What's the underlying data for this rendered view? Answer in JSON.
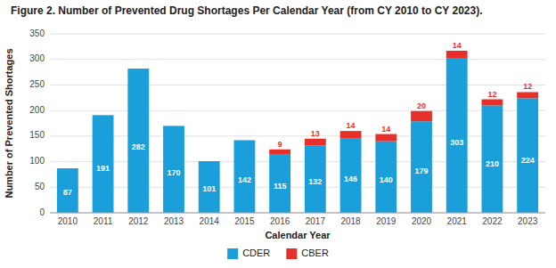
{
  "chart_data": {
    "type": "bar",
    "stacked": true,
    "title": "Figure 2.  Number of Prevented Drug Shortages Per Calendar Year (from CY 2010 to CY 2023).",
    "x_label": "Calendar Year",
    "y_label": "Number of Prevented Shortages",
    "categories": [
      "2010",
      "2011",
      "2012",
      "2013",
      "2014",
      "2015",
      "2016",
      "2017",
      "2018",
      "2019",
      "2020",
      "2021",
      "2022",
      "2023"
    ],
    "series": [
      {
        "name": "CDER",
        "color": "#1A9FDA",
        "values": [
          87,
          191,
          282,
          170,
          101,
          142,
          115,
          132,
          146,
          140,
          179,
          303,
          210,
          224
        ]
      },
      {
        "name": "CBER",
        "color": "#E8302A",
        "values": [
          0,
          0,
          0,
          0,
          0,
          0,
          9,
          13,
          14,
          14,
          20,
          14,
          12,
          12
        ]
      }
    ],
    "ylim": [
      0,
      350
    ],
    "yticks": [
      0,
      50,
      100,
      150,
      200,
      250,
      300,
      350
    ],
    "grid": true,
    "legend": "bottom",
    "data_labels": true
  }
}
